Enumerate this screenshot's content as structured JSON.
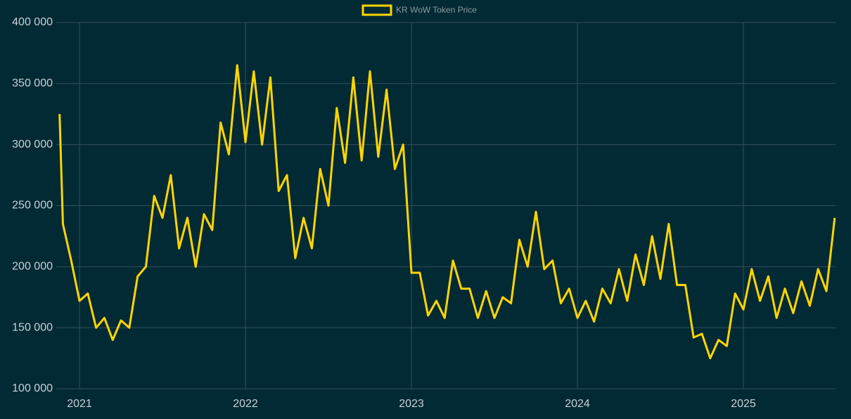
{
  "chart_data": {
    "type": "line",
    "legend": "top",
    "grid": true,
    "xlim": [
      2020.86,
      2025.555
    ],
    "xticks": [
      2021,
      2022,
      2023,
      2024,
      2025
    ],
    "ylim": [
      100000,
      400000
    ],
    "yticks": [
      {
        "value": 100000,
        "label": "100 000"
      },
      {
        "value": 150000,
        "label": "150 000"
      },
      {
        "value": 200000,
        "label": "200 000"
      },
      {
        "value": 250000,
        "label": "250 000"
      },
      {
        "value": 300000,
        "label": "300 000"
      },
      {
        "value": 350000,
        "label": "350 000"
      },
      {
        "value": 400000,
        "label": "400 000"
      }
    ],
    "x": [
      2020.88,
      2020.9,
      2020.95,
      2021.0,
      2021.05,
      2021.1,
      2021.15,
      2021.2,
      2021.25,
      2021.3,
      2021.35,
      2021.4,
      2021.45,
      2021.5,
      2021.55,
      2021.6,
      2021.65,
      2021.7,
      2021.75,
      2021.8,
      2021.85,
      2021.9,
      2021.95,
      2022.0,
      2022.05,
      2022.1,
      2022.15,
      2022.2,
      2022.25,
      2022.3,
      2022.35,
      2022.4,
      2022.45,
      2022.5,
      2022.55,
      2022.6,
      2022.65,
      2022.7,
      2022.75,
      2022.8,
      2022.85,
      2022.9,
      2022.95,
      2023.0,
      2023.05,
      2023.1,
      2023.15,
      2023.2,
      2023.25,
      2023.3,
      2023.35,
      2023.4,
      2023.45,
      2023.5,
      2023.55,
      2023.6,
      2023.65,
      2023.7,
      2023.75,
      2023.8,
      2023.85,
      2023.9,
      2023.95,
      2024.0,
      2024.05,
      2024.1,
      2024.15,
      2024.2,
      2024.25,
      2024.3,
      2024.35,
      2024.4,
      2024.45,
      2024.5,
      2024.55,
      2024.6,
      2024.65,
      2024.7,
      2024.75,
      2024.8,
      2024.85,
      2024.9,
      2024.95,
      2025.0,
      2025.05,
      2025.1,
      2025.15,
      2025.2,
      2025.25,
      2025.3,
      2025.35,
      2025.4,
      2025.45,
      2025.5,
      2025.55
    ],
    "series": [
      {
        "name": "KR WoW Token Price",
        "color": "#ffd500",
        "values": [
          325000,
          235000,
          205000,
          172000,
          178000,
          150000,
          158000,
          140000,
          156000,
          150000,
          192000,
          200000,
          258000,
          240000,
          275000,
          215000,
          240000,
          200000,
          243000,
          230000,
          318000,
          292000,
          365000,
          302000,
          360000,
          300000,
          355000,
          262000,
          275000,
          207000,
          240000,
          215000,
          280000,
          250000,
          330000,
          285000,
          355000,
          287000,
          360000,
          290000,
          345000,
          280000,
          300000,
          195000,
          195000,
          160000,
          172000,
          158000,
          205000,
          182000,
          182000,
          158000,
          180000,
          158000,
          175000,
          170000,
          222000,
          200000,
          245000,
          198000,
          205000,
          170000,
          182000,
          158000,
          172000,
          155000,
          182000,
          170000,
          198000,
          172000,
          210000,
          185000,
          225000,
          190000,
          235000,
          185000,
          185000,
          142000,
          145000,
          125000,
          140000,
          135000,
          178000,
          165000,
          198000,
          172000,
          192000,
          158000,
          182000,
          162000,
          188000,
          168000,
          198000,
          180000,
          240000
        ]
      }
    ]
  }
}
